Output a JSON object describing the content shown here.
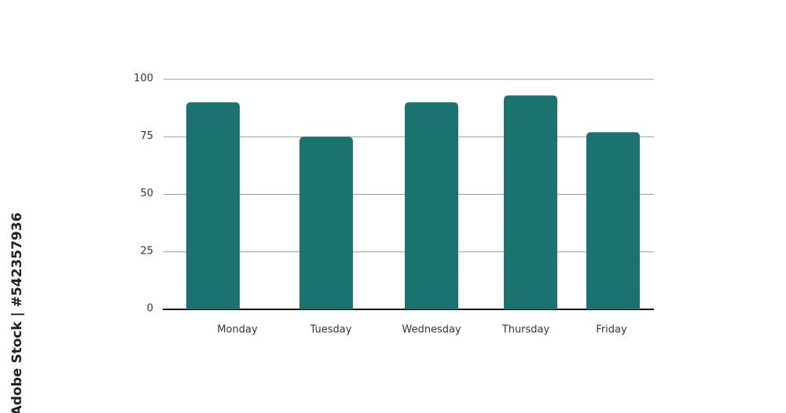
{
  "chart_data": {
    "type": "bar",
    "categories": [
      "Monday",
      "Tuesday",
      "Wednesday",
      "Thursday",
      "Friday"
    ],
    "values": [
      90,
      75,
      90,
      93,
      77
    ],
    "color": "#1b7370",
    "ylim": [
      0,
      100
    ],
    "yticks": [
      0,
      25,
      50,
      75,
      100
    ],
    "grid": true
  },
  "watermark": "Adobe Stock | #542357936"
}
